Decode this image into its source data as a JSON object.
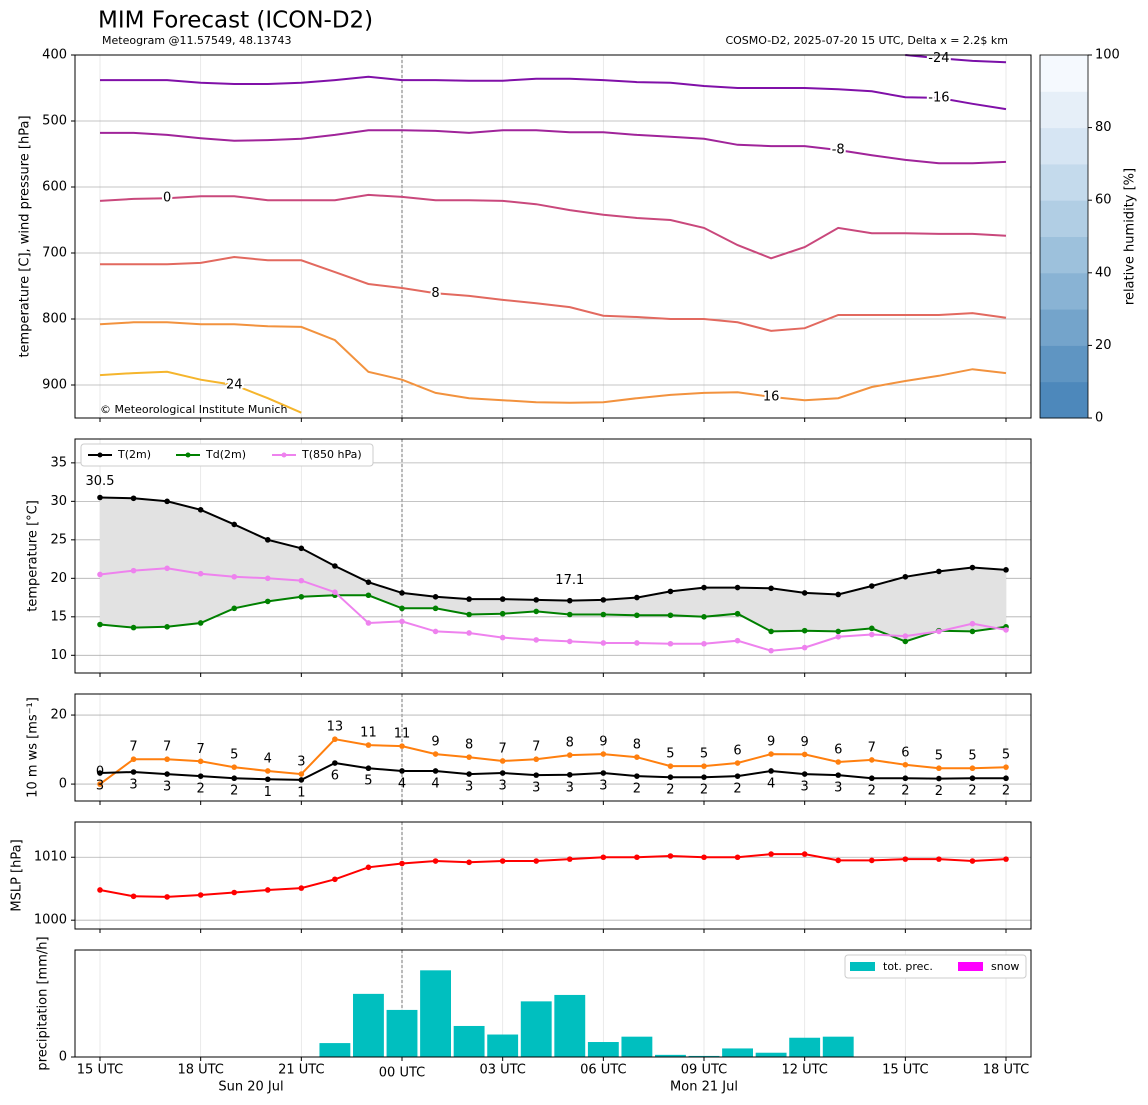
{
  "title": "MIM Forecast (ICON-D2)",
  "subtitle_left": "Meteogram @11.57549, 48.13743",
  "subtitle_right": "COSMO-D2, 2025-07-20 15 UTC, Delta x = 2.2$ km",
  "credit": "© Meteorological Institute Munich",
  "categories": [
    "15 UTC",
    null,
    null,
    "18 UTC",
    null,
    null,
    "21 UTC",
    null,
    null,
    "00 UTC",
    null,
    null,
    "03 UTC",
    null,
    null,
    "06 UTC",
    null,
    null,
    "09 UTC",
    null,
    null,
    "12 UTC",
    null,
    null,
    "15 UTC",
    null,
    null,
    "18 UTC"
  ],
  "dates": [
    "Sun 20 Jul",
    "Mon 21 Jul"
  ],
  "chart_data": [
    {
      "type": "contour",
      "y_label": "temperature [C], wind pressure [hPa]",
      "ylim": [
        400,
        950
      ],
      "yticks": [
        400,
        500,
        600,
        700,
        800,
        900
      ],
      "y_inverted": true,
      "grid": true,
      "series": [
        {
          "level": -24,
          "color": "#7a10a8",
          "values": [
            null,
            null,
            null,
            null,
            null,
            null,
            null,
            null,
            null,
            null,
            null,
            null,
            null,
            null,
            null,
            null,
            null,
            null,
            null,
            null,
            null,
            null,
            null,
            null,
            400,
            405,
            409,
            411
          ]
        },
        {
          "level": -16,
          "color": "#8010a8",
          "values": [
            438,
            438,
            438,
            442,
            444,
            444,
            442,
            438,
            433,
            438,
            438,
            439,
            439,
            436,
            436,
            438,
            441,
            442,
            447,
            450,
            450,
            450,
            452,
            455,
            464,
            465,
            474,
            482
          ]
        },
        {
          "level": -8,
          "color": "#a0249a",
          "values": [
            518,
            518,
            521,
            526,
            530,
            529,
            527,
            521,
            514,
            514,
            515,
            518,
            514,
            514,
            517,
            517,
            521,
            524,
            527,
            536,
            538,
            538,
            544,
            552,
            559,
            564,
            564,
            562
          ]
        },
        {
          "level": 0,
          "color": "#c9487c",
          "values": [
            621,
            618,
            617,
            614,
            614,
            620,
            620,
            620,
            612,
            615,
            620,
            620,
            621,
            626,
            635,
            642,
            647,
            650,
            662,
            688,
            708,
            691,
            662,
            670,
            670,
            671,
            671,
            674
          ]
        },
        {
          "level": 8,
          "color": "#e2695f",
          "values": [
            717,
            717,
            717,
            715,
            706,
            711,
            711,
            729,
            747,
            753,
            761,
            765,
            771,
            776,
            782,
            795,
            797,
            800,
            800,
            805,
            818,
            814,
            794,
            794,
            794,
            794,
            791,
            798
          ]
        },
        {
          "level": 16,
          "color": "#f2923e",
          "values": [
            808,
            805,
            805,
            808,
            808,
            811,
            812,
            832,
            880,
            892,
            912,
            920,
            923,
            926,
            927,
            926,
            920,
            915,
            912,
            911,
            918,
            923,
            920,
            903,
            894,
            886,
            876,
            882
          ]
        },
        {
          "level": 24,
          "color": "#f5b52c",
          "values": [
            885,
            882,
            880,
            892,
            900,
            920,
            942,
            null,
            null,
            null,
            null,
            null,
            null,
            null,
            null,
            null,
            null,
            null,
            null,
            null,
            null,
            null,
            null,
            null,
            null,
            null,
            null,
            null
          ]
        }
      ],
      "colorbar": {
        "label": "relative humidity [%]",
        "ylim": [
          0,
          100
        ],
        "yticks": [
          0,
          20,
          40,
          60,
          80,
          100
        ],
        "colors": [
          "#4d88bb",
          "#5f95c2",
          "#74a4cb",
          "#89b3d4",
          "#9dc1dc",
          "#b1cee4",
          "#c4daec",
          "#d6e5f3",
          "#e6eff8",
          "#f5f9fe"
        ]
      }
    },
    {
      "type": "line",
      "y_label": "temperature [°C]",
      "ylim": [
        7.7,
        38.1
      ],
      "yticks": [
        10,
        15,
        20,
        25,
        30,
        35
      ],
      "grid": true,
      "legend": "upper left",
      "fill_color": "#e2e2e2",
      "max_label": "30.5",
      "max_color": "#ff0000",
      "min_label": "17.1",
      "min_color": "#0000ff",
      "series": [
        {
          "name": "T(2m)",
          "color": "#000000",
          "values": [
            30.5,
            30.4,
            30.0,
            28.9,
            27.0,
            25.0,
            23.9,
            21.6,
            19.5,
            18.1,
            17.6,
            17.3,
            17.3,
            17.2,
            17.1,
            17.2,
            17.5,
            18.3,
            18.8,
            18.8,
            18.7,
            18.1,
            17.9,
            19.0,
            20.2,
            20.9,
            21.4,
            21.1
          ]
        },
        {
          "name": "Td(2m)",
          "color": "#008000",
          "values": [
            14.0,
            13.6,
            13.7,
            14.2,
            16.1,
            17.0,
            17.6,
            17.8,
            17.8,
            16.1,
            16.1,
            15.3,
            15.4,
            15.7,
            15.3,
            15.3,
            15.2,
            15.2,
            15.0,
            15.4,
            13.1,
            13.2,
            13.1,
            13.5,
            11.8,
            13.2,
            13.1,
            13.7
          ]
        },
        {
          "name": "T(850 hPa)",
          "color": "#ee82ee",
          "values": [
            20.5,
            21.0,
            21.3,
            20.6,
            20.2,
            20.0,
            19.7,
            18.2,
            14.2,
            14.4,
            13.1,
            12.9,
            12.3,
            12.0,
            11.8,
            11.6,
            11.6,
            11.5,
            11.5,
            11.9,
            10.6,
            11.0,
            12.4,
            12.7,
            12.5,
            13.1,
            14.1,
            13.3
          ]
        }
      ]
    },
    {
      "type": "line",
      "y_label": "10 m ws [ms⁻¹]",
      "ylim": [
        -4.9,
        26.1
      ],
      "yticks": [
        0,
        20
      ],
      "grid": true,
      "series": [
        {
          "color": "#ff7f0e",
          "label_position": "above",
          "values": [
            0,
            7.2,
            7.2,
            6.6,
            4.9,
            3.8,
            2.9,
            13.0,
            11.3,
            11.0,
            8.7,
            7.8,
            6.7,
            7.2,
            8.4,
            8.7,
            7.8,
            5.2,
            5.2,
            6.1,
            8.7,
            8.6,
            6.4,
            7.0,
            5.6,
            4.6,
            4.6,
            4.9
          ],
          "value_labels": [
            "0",
            "7",
            "7",
            "7",
            "5",
            "4",
            "3",
            "13",
            "11",
            "11",
            "9",
            "8",
            "7",
            "7",
            "8",
            "9",
            "8",
            "5",
            "5",
            "6",
            "9",
            "9",
            "6",
            "7",
            "6",
            "5",
            "5",
            "5"
          ]
        },
        {
          "color": "#000000",
          "label_position": "below",
          "values": [
            3.2,
            3.5,
            2.9,
            2.3,
            1.7,
            1.4,
            1.2,
            6.1,
            4.6,
            3.8,
            3.8,
            2.9,
            3.2,
            2.6,
            2.7,
            3.2,
            2.3,
            2.0,
            2.0,
            2.3,
            3.8,
            2.9,
            2.6,
            1.7,
            1.7,
            1.6,
            1.7,
            1.7
          ],
          "value_labels": [
            "3",
            "3",
            "3",
            "2",
            "2",
            "1",
            "1",
            "6",
            "5",
            "4",
            "4",
            "3",
            "3",
            "3",
            "3",
            "3",
            "2",
            "2",
            "2",
            "2",
            "4",
            "3",
            "3",
            "2",
            "2",
            "2",
            "2",
            "2"
          ]
        }
      ]
    },
    {
      "type": "line",
      "y_label": "MSLP [hPa]",
      "ylim": [
        998.6,
        1015.6
      ],
      "yticks": [
        1000,
        1010
      ],
      "grid": true,
      "series": [
        {
          "color": "#ff0000",
          "values": [
            1004.8,
            1003.8,
            1003.7,
            1004.0,
            1004.4,
            1004.8,
            1005.1,
            1006.5,
            1008.4,
            1009.0,
            1009.4,
            1009.2,
            1009.4,
            1009.4,
            1009.7,
            1010.0,
            1010.0,
            1010.2,
            1010.0,
            1010.0,
            1010.5,
            1010.5,
            1009.5,
            1009.5,
            1009.7,
            1009.7,
            1009.4,
            1009.7
          ]
        }
      ]
    },
    {
      "type": "bar",
      "y_label": "precipitation [mm/h]",
      "ylim": [
        0,
        1.0
      ],
      "yticks": [
        0
      ],
      "legend": "upper right",
      "series": [
        {
          "name": "tot. prec.",
          "color": "#00bfbf",
          "values": [
            0,
            0,
            0,
            0,
            0,
            0,
            0,
            0.13,
            0.59,
            0.44,
            0.81,
            0.29,
            0.21,
            0.52,
            0.58,
            0.14,
            0.19,
            0.02,
            0.01,
            0.08,
            0.04,
            0.18,
            0.19,
            0,
            0,
            0,
            0,
            0
          ]
        },
        {
          "name": "snow",
          "color": "#ff00ff",
          "values": [
            0,
            0,
            0,
            0,
            0,
            0,
            0,
            0,
            0,
            0,
            0,
            0,
            0,
            0,
            0,
            0,
            0,
            0,
            0,
            0,
            0,
            0,
            0,
            0,
            0,
            0,
            0,
            0
          ]
        }
      ]
    }
  ]
}
